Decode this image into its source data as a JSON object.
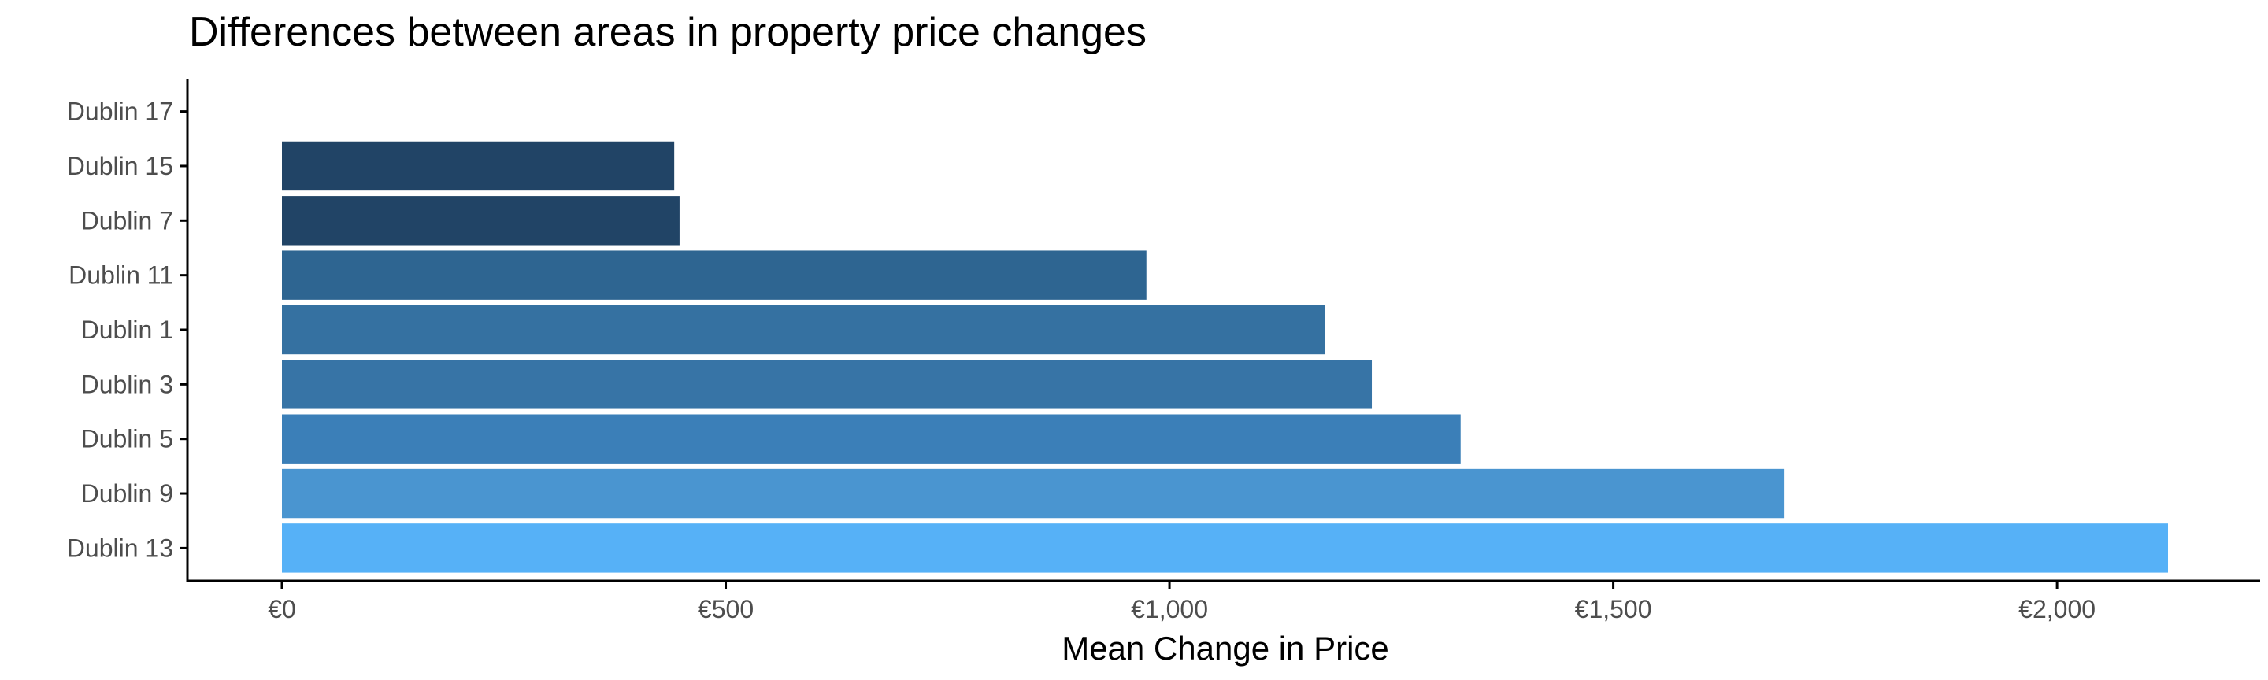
{
  "chart_data": {
    "type": "bar",
    "orientation": "horizontal",
    "title": "Differences between areas in property price changes",
    "xlabel": "Mean Change in Price",
    "ylabel": "",
    "categories": [
      "Dublin 17",
      "Dublin 15",
      "Dublin 7",
      "Dublin 11",
      "Dublin 1",
      "Dublin 3",
      "Dublin 5",
      "Dublin 9",
      "Dublin 13"
    ],
    "values": [
      0,
      442,
      448,
      974,
      1175,
      1228,
      1328,
      1693,
      2125
    ],
    "bar_colors": [
      "#1f3f5f",
      "#214466",
      "#214466",
      "#2e6591",
      "#3571a1",
      "#3774a6",
      "#3b7fb8",
      "#4a95d0",
      "#56b1f7"
    ],
    "xlim": [
      -105,
      2235
    ],
    "xticks": [
      0,
      500,
      1000,
      1500,
      2000
    ],
    "xtick_labels": [
      "€0",
      "€500",
      "€1,000",
      "€1,500",
      "€2,000"
    ],
    "grid": false,
    "legend": "none"
  }
}
